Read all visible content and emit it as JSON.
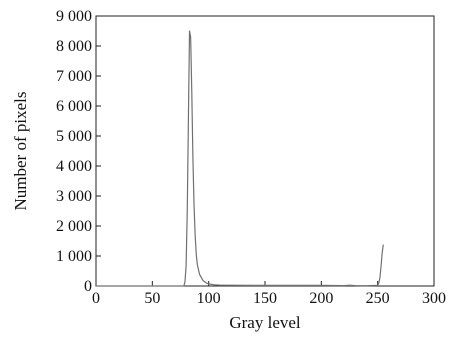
{
  "chart_data": {
    "type": "line",
    "title": "",
    "xlabel": "Gray level",
    "ylabel": "Number of pixels",
    "xlim": [
      0,
      300
    ],
    "ylim": [
      0,
      9000
    ],
    "grid": false,
    "legend": "none",
    "x_ticks": [
      0,
      50,
      100,
      150,
      200,
      250,
      300
    ],
    "x_tick_labels": [
      "0",
      "50",
      "100",
      "150",
      "200",
      "250",
      "300"
    ],
    "y_ticks": [
      0,
      1000,
      2000,
      3000,
      4000,
      5000,
      6000,
      7000,
      8000,
      9000
    ],
    "y_tick_labels": [
      "0",
      "1 000",
      "2 000",
      "3 000",
      "4 000",
      "5 000",
      "6 000",
      "7 000",
      "8 000",
      "9 000"
    ],
    "line_color": "#707070",
    "series": [
      {
        "x": [
          0,
          78,
          79,
          80,
          81,
          82,
          83,
          84,
          85,
          86,
          87,
          88,
          89,
          90,
          92,
          95,
          98,
          100,
          105,
          110,
          120,
          140,
          160,
          180,
          200,
          220,
          225,
          230,
          240,
          250,
          251,
          252,
          253,
          254,
          255
        ],
        "y": [
          0,
          0,
          150,
          700,
          2500,
          5500,
          8500,
          8300,
          6500,
          4300,
          2700,
          1700,
          1050,
          700,
          380,
          180,
          100,
          70,
          40,
          30,
          25,
          20,
          20,
          20,
          20,
          15,
          25,
          15,
          10,
          20,
          100,
          280,
          650,
          1100,
          1380
        ]
      }
    ]
  }
}
